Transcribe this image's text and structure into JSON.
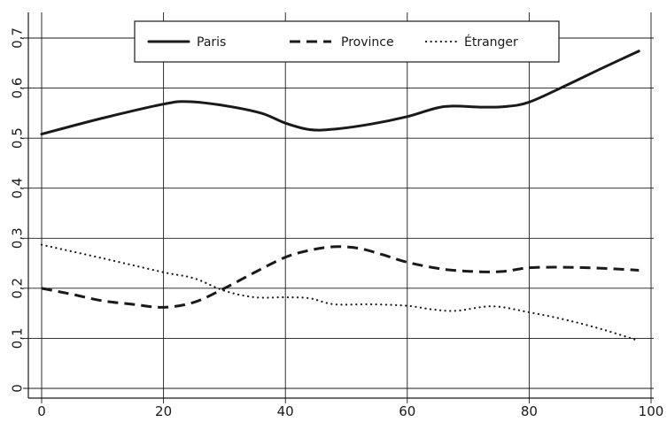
{
  "chart_data": {
    "type": "line",
    "title": "",
    "xlabel": "",
    "ylabel": "",
    "xlim": [
      0,
      100
    ],
    "ylim": [
      0,
      0.7
    ],
    "x_ticks": [
      {
        "value": 0,
        "label": "0"
      },
      {
        "value": 20,
        "label": "20"
      },
      {
        "value": 40,
        "label": "40"
      },
      {
        "value": 60,
        "label": "60"
      },
      {
        "value": 80,
        "label": "80"
      },
      {
        "value": 100,
        "label": "100"
      }
    ],
    "y_ticks": [
      {
        "value": 0,
        "label": "0"
      },
      {
        "value": 0.1,
        "label": "0,1"
      },
      {
        "value": 0.2,
        "label": "0,2"
      },
      {
        "value": 0.3,
        "label": "0,3"
      },
      {
        "value": 0.4,
        "label": "0,4"
      },
      {
        "value": 0.5,
        "label": "0,5"
      },
      {
        "value": 0.6,
        "label": "0,6"
      },
      {
        "value": 0.7,
        "label": "0,7"
      }
    ],
    "grid": true,
    "legend_position": "top-center",
    "series": [
      {
        "name": "Paris",
        "style": "solid",
        "color": "#1a1a1a",
        "points": [
          [
            0,
            0.508
          ],
          [
            10,
            0.54
          ],
          [
            20,
            0.568
          ],
          [
            24,
            0.573
          ],
          [
            30,
            0.565
          ],
          [
            36,
            0.55
          ],
          [
            40,
            0.53
          ],
          [
            44,
            0.517
          ],
          [
            48,
            0.518
          ],
          [
            54,
            0.528
          ],
          [
            60,
            0.543
          ],
          [
            66,
            0.563
          ],
          [
            72,
            0.562
          ],
          [
            76,
            0.563
          ],
          [
            80,
            0.572
          ],
          [
            86,
            0.605
          ],
          [
            92,
            0.64
          ],
          [
            98,
            0.674
          ]
        ]
      },
      {
        "name": "Province",
        "style": "dashed",
        "color": "#1a1a1a",
        "points": [
          [
            0,
            0.2
          ],
          [
            5,
            0.188
          ],
          [
            10,
            0.175
          ],
          [
            15,
            0.168
          ],
          [
            20,
            0.162
          ],
          [
            25,
            0.172
          ],
          [
            30,
            0.2
          ],
          [
            35,
            0.232
          ],
          [
            40,
            0.262
          ],
          [
            44,
            0.276
          ],
          [
            48,
            0.283
          ],
          [
            52,
            0.28
          ],
          [
            56,
            0.267
          ],
          [
            60,
            0.252
          ],
          [
            66,
            0.238
          ],
          [
            72,
            0.233
          ],
          [
            76,
            0.234
          ],
          [
            80,
            0.241
          ],
          [
            86,
            0.242
          ],
          [
            92,
            0.24
          ],
          [
            98,
            0.236
          ]
        ]
      },
      {
        "name": "Étranger",
        "style": "dotted",
        "color": "#1a1a1a",
        "points": [
          [
            0,
            0.287
          ],
          [
            10,
            0.26
          ],
          [
            20,
            0.232
          ],
          [
            25,
            0.22
          ],
          [
            30,
            0.195
          ],
          [
            35,
            0.182
          ],
          [
            40,
            0.182
          ],
          [
            44,
            0.18
          ],
          [
            48,
            0.168
          ],
          [
            54,
            0.168
          ],
          [
            60,
            0.165
          ],
          [
            64,
            0.158
          ],
          [
            68,
            0.155
          ],
          [
            74,
            0.164
          ],
          [
            80,
            0.152
          ],
          [
            86,
            0.137
          ],
          [
            92,
            0.118
          ],
          [
            98,
            0.095
          ]
        ]
      }
    ]
  }
}
